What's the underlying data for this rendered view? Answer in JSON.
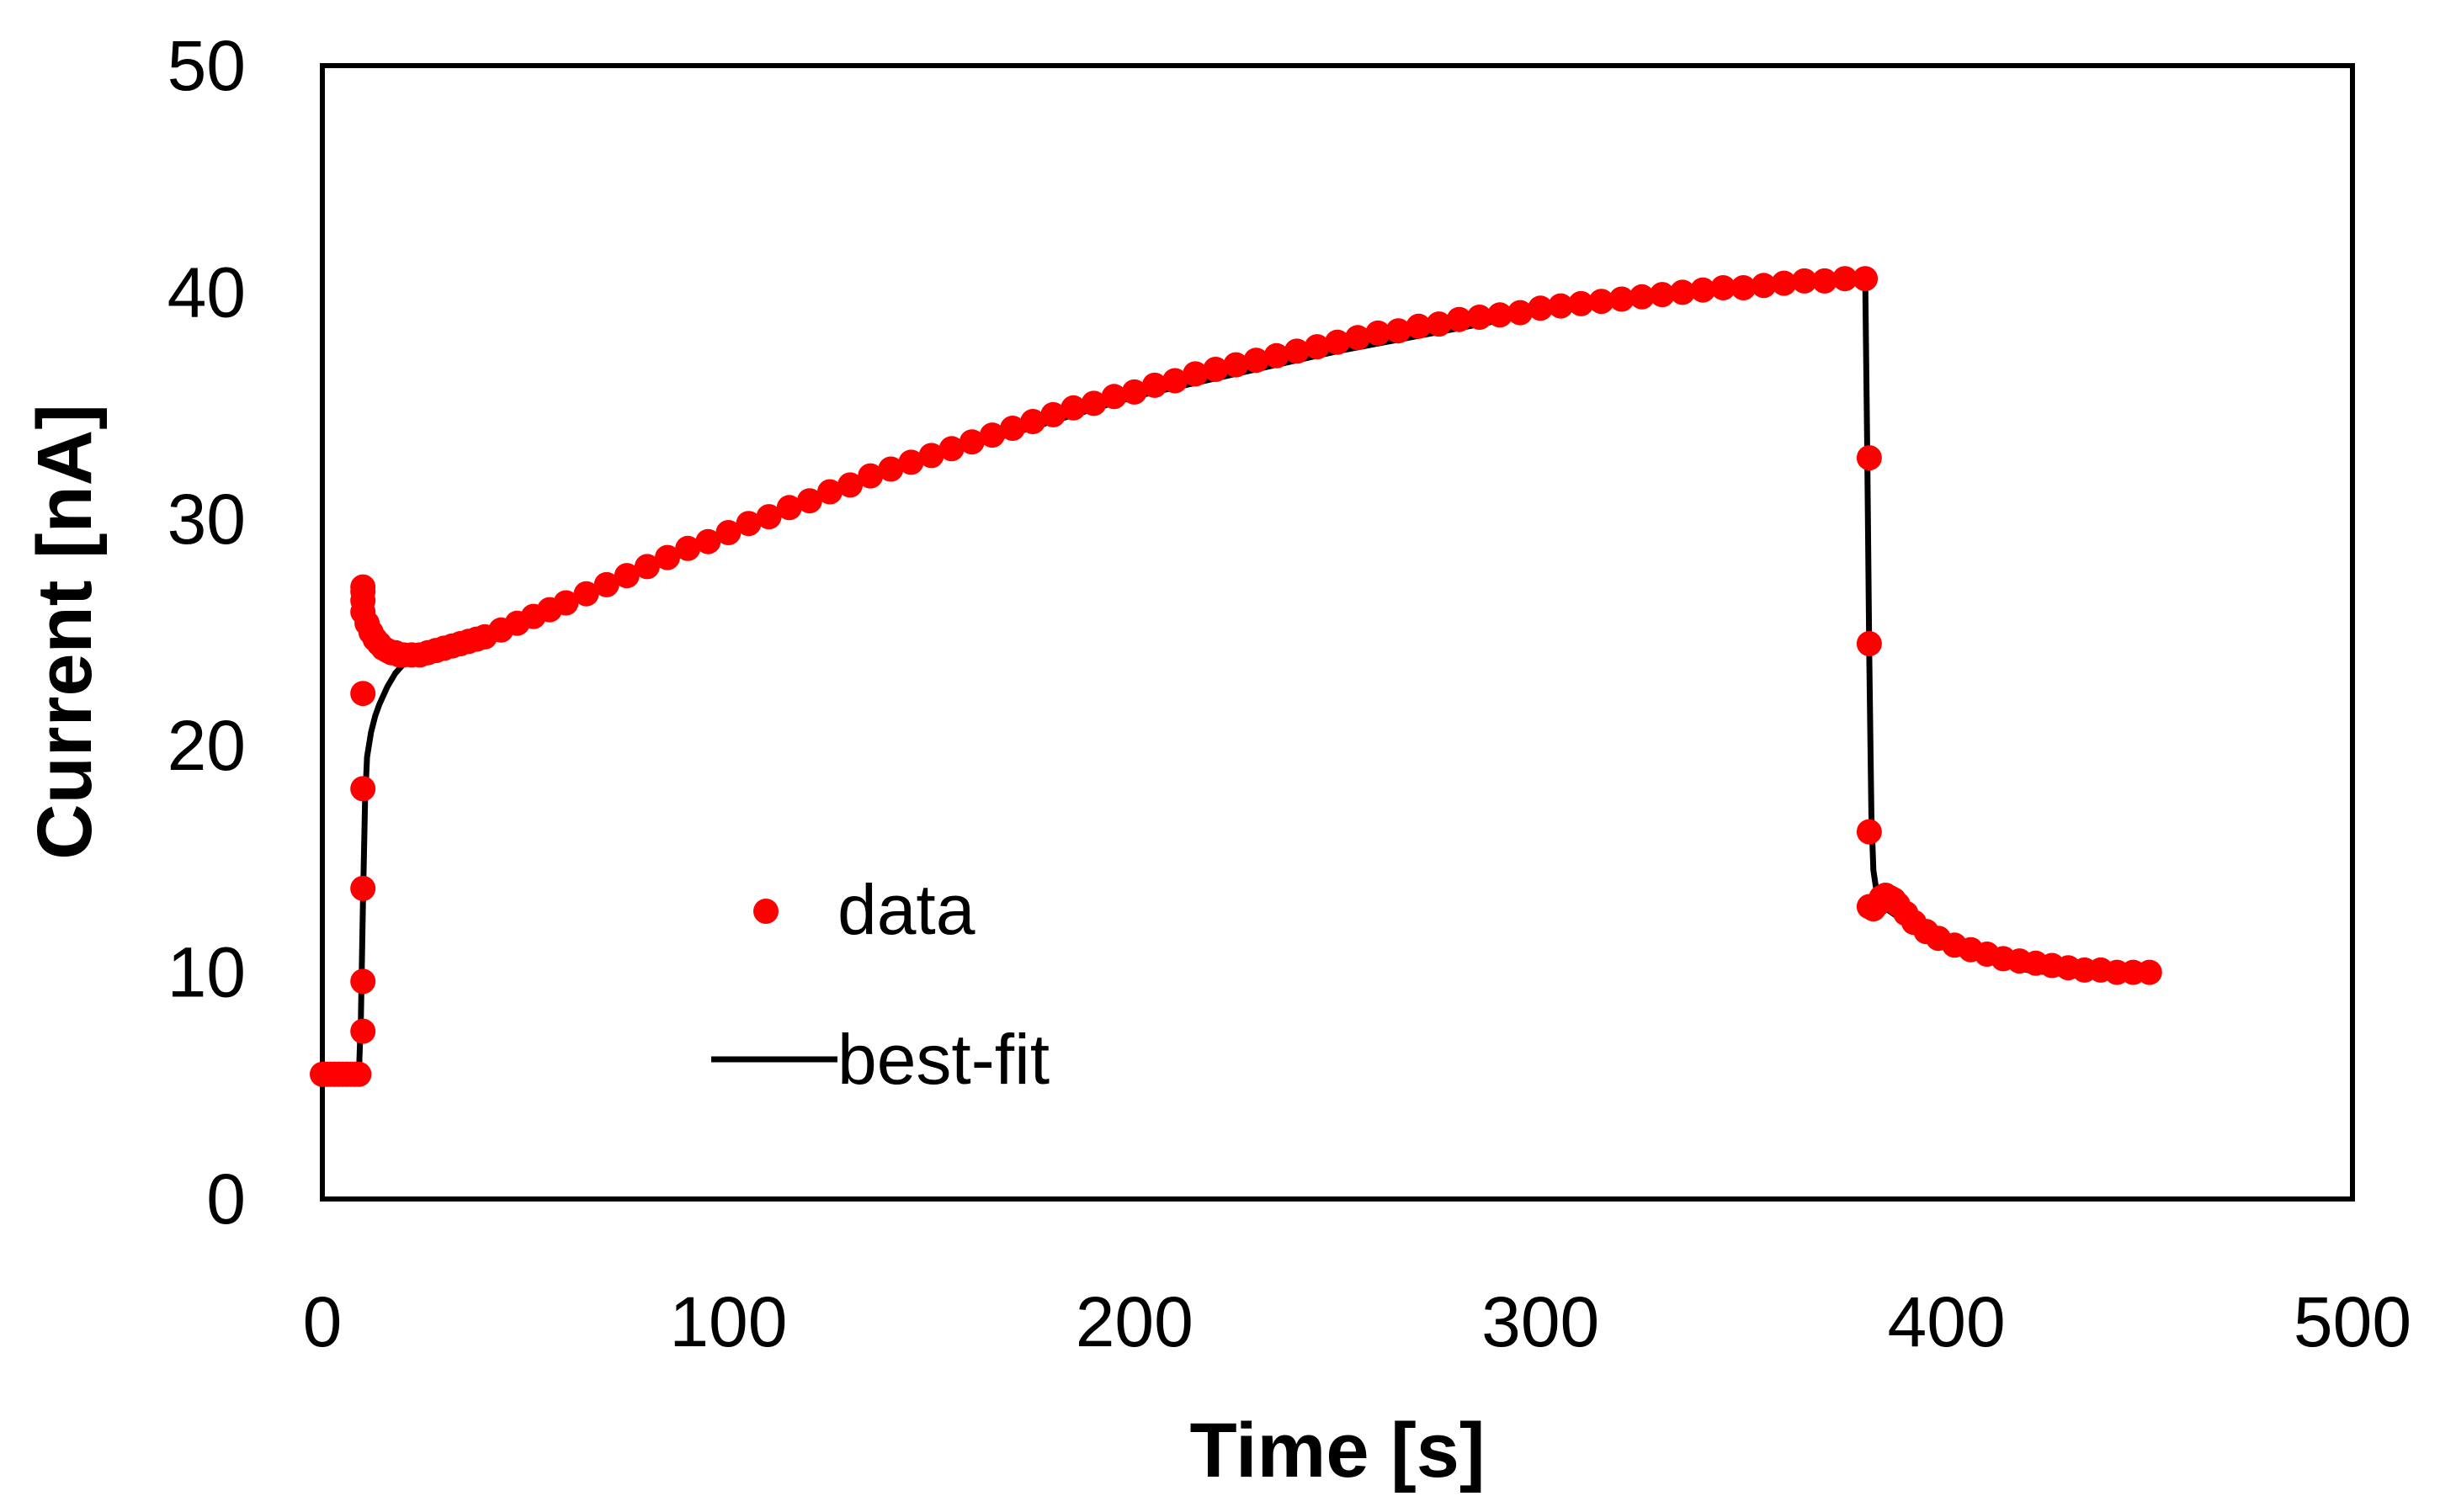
{
  "chart_data": {
    "type": "scatter",
    "title": "",
    "xlabel": "Time [s]",
    "ylabel": "Current [nA]",
    "xlim": [
      0,
      500
    ],
    "ylim": [
      0,
      50
    ],
    "xticks": [
      0,
      100,
      200,
      300,
      400,
      500
    ],
    "yticks": [
      0,
      10,
      20,
      30,
      40,
      50
    ],
    "grid": false,
    "legend_position": "center-left",
    "series": [
      {
        "name": "data",
        "kind": "markers",
        "color": "#ff0000",
        "x": [
          0,
          1,
          2,
          3,
          4,
          5,
          6,
          7,
          8,
          9,
          10,
          10,
          10,
          10,
          10,
          10,
          10,
          10,
          10,
          11,
          12,
          13,
          14,
          15,
          16,
          17,
          18,
          19,
          20,
          22,
          24,
          26,
          28,
          30,
          32,
          34,
          36,
          38,
          40,
          44,
          48,
          52,
          56,
          60,
          65,
          70,
          75,
          80,
          85,
          90,
          95,
          100,
          105,
          110,
          115,
          120,
          125,
          130,
          135,
          140,
          145,
          150,
          155,
          160,
          165,
          170,
          175,
          180,
          185,
          190,
          195,
          200,
          205,
          210,
          215,
          220,
          225,
          230,
          235,
          240,
          245,
          250,
          255,
          260,
          265,
          270,
          275,
          280,
          285,
          290,
          295,
          300,
          305,
          310,
          315,
          320,
          325,
          330,
          335,
          340,
          345,
          350,
          355,
          360,
          365,
          370,
          375,
          380,
          381,
          381,
          381,
          381,
          382,
          383,
          384,
          385,
          386,
          387,
          388,
          390,
          392,
          395,
          398,
          402,
          406,
          410,
          414,
          418,
          422,
          426,
          430,
          434,
          438,
          442,
          446,
          450
        ],
        "y": [
          5.5,
          5.5,
          5.5,
          5.5,
          5.5,
          5.5,
          5.5,
          5.5,
          5.5,
          5.5,
          7.4,
          9.6,
          13.7,
          18.1,
          22.3,
          26.8,
          27.0,
          26.4,
          25.9,
          25.4,
          25.0,
          24.7,
          24.5,
          24.3,
          24.2,
          24.1,
          24.1,
          24.0,
          24.0,
          24.0,
          24.0,
          24.1,
          24.2,
          24.3,
          24.4,
          24.5,
          24.6,
          24.7,
          24.8,
          25.1,
          25.4,
          25.7,
          26.0,
          26.3,
          26.7,
          27.1,
          27.5,
          27.9,
          28.3,
          28.7,
          29.0,
          29.4,
          29.8,
          30.1,
          30.5,
          30.8,
          31.2,
          31.5,
          31.9,
          32.2,
          32.5,
          32.8,
          33.1,
          33.4,
          33.7,
          34.0,
          34.3,
          34.6,
          34.9,
          35.1,
          35.4,
          35.6,
          35.9,
          36.1,
          36.4,
          36.6,
          36.8,
          37.0,
          37.2,
          37.4,
          37.6,
          37.8,
          38.0,
          38.2,
          38.3,
          38.5,
          38.6,
          38.8,
          38.9,
          39.0,
          39.1,
          39.3,
          39.4,
          39.5,
          39.6,
          39.7,
          39.8,
          39.9,
          40.0,
          40.1,
          40.2,
          40.2,
          40.3,
          40.4,
          40.5,
          40.5,
          40.6,
          40.6,
          32.7,
          24.5,
          16.2,
          12.9,
          12.8,
          13.0,
          13.3,
          13.4,
          13.3,
          13.2,
          13.0,
          12.6,
          12.2,
          11.8,
          11.5,
          11.2,
          11.0,
          10.8,
          10.6,
          10.5,
          10.4,
          10.3,
          10.2,
          10.1,
          10.1,
          10.0,
          10.0,
          10.0
        ]
      },
      {
        "name": "best-fit",
        "kind": "line",
        "color": "#000000",
        "x": [
          0,
          5,
          9,
          9.5,
          10,
          10.5,
          11,
          12,
          13,
          14,
          16,
          18,
          20,
          22,
          24,
          26,
          28,
          30,
          40,
          60,
          80,
          100,
          150,
          200,
          250,
          300,
          350,
          378,
          380,
          380.5,
          381,
          381.5,
          382,
          383,
          384,
          386,
          390,
          395,
          400,
          410,
          420,
          430,
          440,
          450
        ],
        "y": [
          5.5,
          5.5,
          5.5,
          8.0,
          13.0,
          17.5,
          19.5,
          20.6,
          21.3,
          21.8,
          22.6,
          23.2,
          23.6,
          23.8,
          23.9,
          24.0,
          24.1,
          24.2,
          24.8,
          26.3,
          27.9,
          29.4,
          32.7,
          35.4,
          37.4,
          39.1,
          40.2,
          40.6,
          40.6,
          33.0,
          24.0,
          17.0,
          14.5,
          13.3,
          13.0,
          12.7,
          12.2,
          11.6,
          11.1,
          10.5,
          10.1,
          9.9,
          9.8,
          9.8
        ]
      }
    ]
  }
}
